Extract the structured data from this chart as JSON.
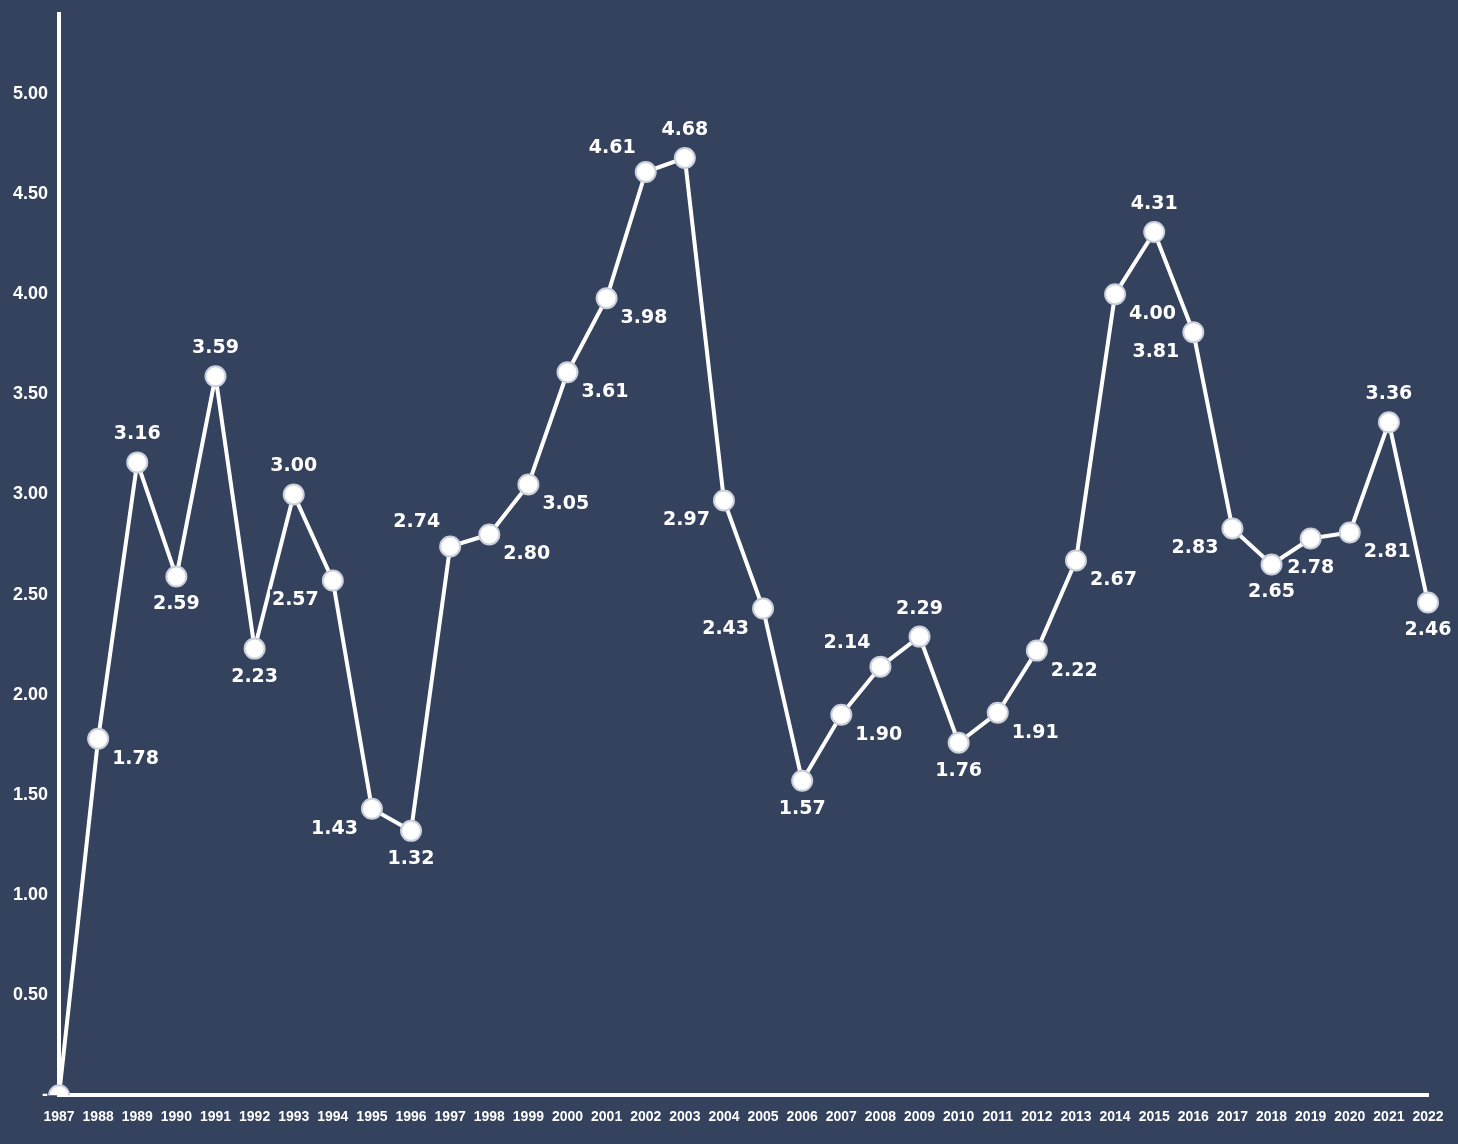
{
  "chart_data": {
    "type": "line",
    "categories": [
      "1987",
      "1988",
      "1989",
      "1990",
      "1991",
      "1992",
      "1993",
      "1994",
      "1995",
      "1996",
      "1997",
      "1998",
      "1999",
      "2000",
      "2001",
      "2002",
      "2003",
      "2004",
      "2005",
      "2006",
      "2007",
      "2008",
      "2009",
      "2010",
      "2011",
      "2012",
      "2013",
      "2014",
      "2015",
      "2016",
      "2017",
      "2018",
      "2019",
      "2020",
      "2021",
      "2022"
    ],
    "series": [
      {
        "color": "#ffffff",
        "values": [
          0,
          1.78,
          3.16,
          2.59,
          3.59,
          2.23,
          3.0,
          2.57,
          1.43,
          1.32,
          2.74,
          2.8,
          3.05,
          3.61,
          3.98,
          4.61,
          4.68,
          2.97,
          2.43,
          1.57,
          1.9,
          2.14,
          2.29,
          1.76,
          1.91,
          2.22,
          2.67,
          4.0,
          4.31,
          3.81,
          2.83,
          2.65,
          2.78,
          2.81,
          3.36,
          2.46
        ],
        "value_labels": [
          null,
          "1.78",
          "3.16",
          "2.59",
          "3.59",
          "2.23",
          "3.00",
          "2.57",
          "1.43",
          "1.32",
          "2.74",
          "2.80",
          "3.05",
          "3.61",
          "3.98",
          "4.61",
          "4.68",
          "2.97",
          "2.43",
          "1.57",
          "1.90",
          "2.14",
          "2.29",
          "1.76",
          "1.91",
          "2.22",
          "2.67",
          "4.00",
          "4.31",
          "3.81",
          "2.83",
          "2.65",
          "2.78",
          "2.81",
          "3.36",
          "2.46"
        ]
      }
    ],
    "ylim": [
      0,
      5.4
    ],
    "yticks": [
      {
        "value": 0,
        "label": "-"
      },
      {
        "value": 0.5,
        "label": "0.50"
      },
      {
        "value": 1,
        "label": "1.00"
      },
      {
        "value": 1.5,
        "label": "1.50"
      },
      {
        "value": 2,
        "label": "2.00"
      },
      {
        "value": 2.5,
        "label": "2.50"
      },
      {
        "value": 3,
        "label": "3.00"
      },
      {
        "value": 3.5,
        "label": "3.50"
      },
      {
        "value": 4,
        "label": "4.00"
      },
      {
        "value": 4.5,
        "label": "4.50"
      },
      {
        "value": 5,
        "label": "5.00"
      }
    ],
    "grid": false,
    "legend": false,
    "marker": "circle",
    "line_style": "solid"
  }
}
